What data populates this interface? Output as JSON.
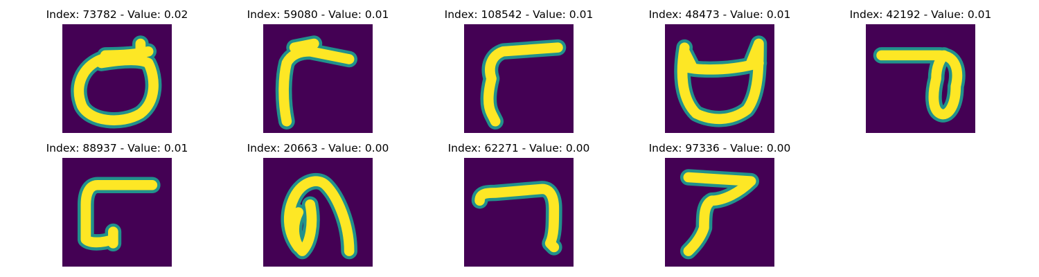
{
  "panels": [
    {
      "title": "Index: 73782 - Value: 0.02"
    },
    {
      "title": "Index: 59080 - Value: 0.01"
    },
    {
      "title": "Index: 108542 - Value: 0.01"
    },
    {
      "title": "Index: 48473 - Value: 0.01"
    },
    {
      "title": "Index: 42192 - Value: 0.01"
    },
    {
      "title": "Index: 88937 - Value: 0.01"
    },
    {
      "title": "Index: 20663 - Value: 0.00"
    },
    {
      "title": "Index: 62271 - Value: 0.00"
    },
    {
      "title": "Index: 97336 - Value: 0.00"
    }
  ],
  "colors": {
    "background": "#440154",
    "glyph": "#fde725",
    "glyph_edge": "#21918c"
  }
}
